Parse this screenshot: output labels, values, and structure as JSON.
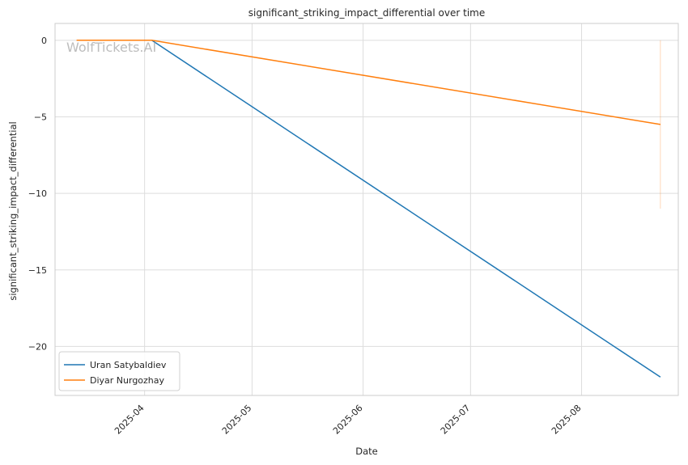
{
  "watermark": "WolfTickets.AI",
  "chart_data": {
    "type": "line",
    "title": "significant_striking_impact_differential over time",
    "xlabel": "Date",
    "ylabel": "significant_striking_impact_differential",
    "xlim": [
      "2025-03-07",
      "2025-08-28"
    ],
    "ylim": [
      -23.2,
      1.1
    ],
    "x_ticks": [
      "2025-04",
      "2025-05",
      "2025-06",
      "2025-07",
      "2025-08"
    ],
    "y_ticks": [
      0,
      -5,
      -10,
      -15,
      -20
    ],
    "y_tick_labels": [
      "0",
      "−5",
      "−10",
      "−15",
      "−20"
    ],
    "grid": true,
    "legend_position": "lower-left",
    "series": [
      {
        "name": "Uran Satybaldiev",
        "color": "#1f77b4",
        "points": [
          {
            "x": "2025-04-03",
            "y": 0
          },
          {
            "x": "2025-08-23",
            "y": -22
          }
        ]
      },
      {
        "name": "Diyar Nurgozhay",
        "color": "#ff7f0e",
        "points": [
          {
            "x": "2025-03-13",
            "y": 0
          },
          {
            "x": "2025-04-03",
            "y": 0
          },
          {
            "x": "2025-08-23",
            "y": -5.5
          }
        ]
      }
    ],
    "annotations": [
      {
        "type": "vertical-range",
        "x": "2025-08-23",
        "y_from": 0,
        "y_to": -11,
        "color": "#ff7f0e"
      }
    ]
  }
}
